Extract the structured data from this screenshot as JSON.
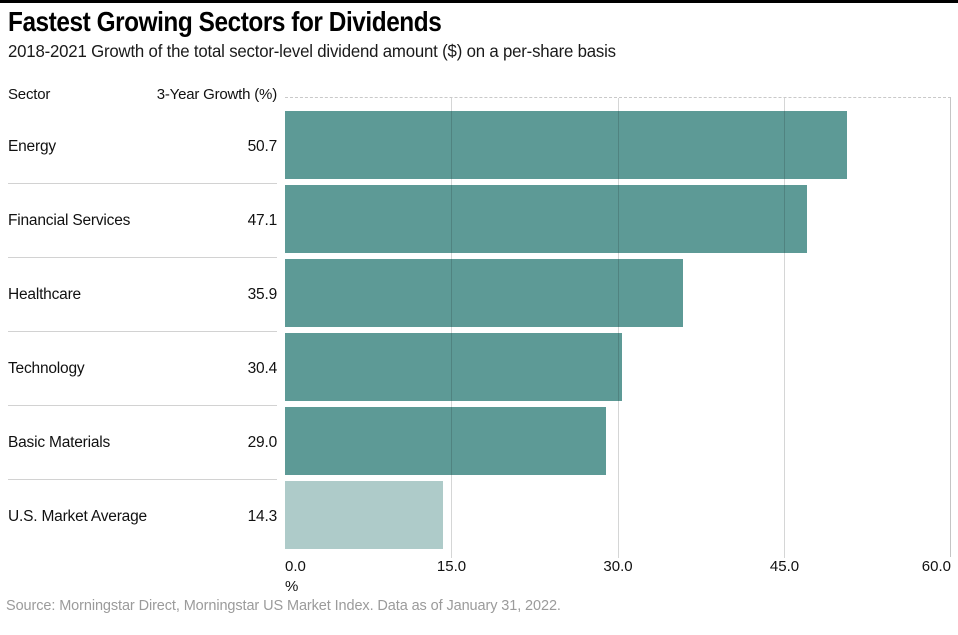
{
  "page": {
    "title": "Fastest Growing Sectors for Dividends",
    "subtitle": "2018-2021 Growth of the total sector-level dividend amount ($) on a per-share basis",
    "source": "Source: Morningstar Direct, Morningstar US Market Index. Data as of January 31, 2022."
  },
  "table": {
    "col_sector": "Sector",
    "col_growth": "3-Year Growth (%)"
  },
  "chart_data": {
    "type": "bar",
    "orientation": "horizontal",
    "title": "Fastest Growing Sectors for Dividends",
    "categories": [
      "Energy",
      "Financial Services",
      "Healthcare",
      "Technology",
      "Basic Materials",
      "U.S. Market Average"
    ],
    "values": [
      50.7,
      47.1,
      35.9,
      30.4,
      29.0,
      14.3
    ],
    "value_labels": [
      "50.7",
      "47.1",
      "35.9",
      "30.4",
      "29.0",
      "14.3"
    ],
    "xlabel": "%",
    "xlim": [
      0,
      60
    ],
    "xticks": [
      0,
      15,
      30,
      45,
      60
    ],
    "xtick_labels": [
      "0.0",
      "15.0",
      "30.0",
      "45.0",
      "60.0"
    ],
    "grid": true,
    "legend": false,
    "bar_color": "#5d9a96",
    "highlight_color": "#aecbc9",
    "highlight_index": 5
  }
}
